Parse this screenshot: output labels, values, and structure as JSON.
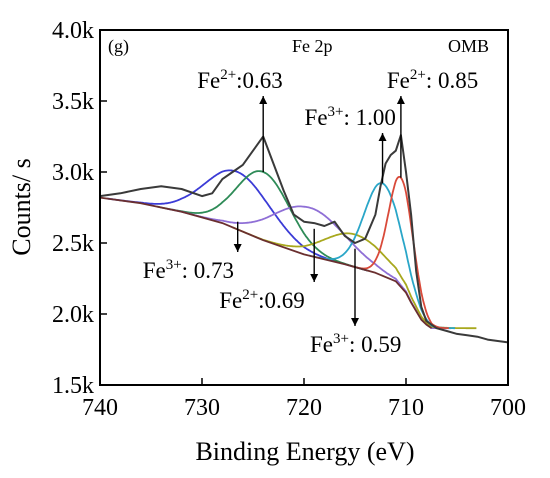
{
  "chart_data": {
    "type": "line",
    "panel_label": "(g)",
    "title": "Fe 2p",
    "corner_label": "OMB",
    "xlabel": "Binding Energy (eV)",
    "ylabel": "Counts/ s",
    "xlim": [
      740,
      700
    ],
    "ylim": [
      1500,
      4000
    ],
    "x_ticks": [
      740,
      730,
      720,
      710,
      700
    ],
    "y_ticks": [
      {
        "value": 1500,
        "label": "1.5k"
      },
      {
        "value": 2000,
        "label": "2.0k"
      },
      {
        "value": 2500,
        "label": "2.5k"
      },
      {
        "value": 3000,
        "label": "3.0k"
      },
      {
        "value": 3500,
        "label": "3.5k"
      },
      {
        "value": 4000,
        "label": "4.0k"
      }
    ],
    "grid": false,
    "series": [
      {
        "kind": "raw",
        "color": "#3a3a3a",
        "x": [
          740,
          738,
          736,
          734,
          732,
          730,
          729,
          728,
          727,
          726,
          725,
          724.5,
          724,
          723,
          722,
          721,
          720,
          719,
          718,
          717,
          716,
          715,
          714,
          713,
          712.5,
          712,
          711.5,
          711,
          710.5,
          710,
          709.5,
          709,
          708.5,
          708,
          707,
          706,
          705,
          704,
          703,
          702,
          701,
          700
        ],
        "y": [
          2830,
          2850,
          2880,
          2900,
          2880,
          2830,
          2850,
          2950,
          3000,
          3050,
          3150,
          3200,
          3250,
          3060,
          2870,
          2700,
          2650,
          2640,
          2620,
          2650,
          2550,
          2500,
          2530,
          2700,
          2900,
          3060,
          3120,
          3150,
          3260,
          3000,
          2700,
          2300,
          2050,
          1950,
          1900,
          1880,
          1860,
          1850,
          1840,
          1820,
          1810,
          1800
        ]
      },
      {
        "kind": "background",
        "color": "#6a2f2f",
        "x": [
          740,
          736,
          732,
          728,
          724,
          720,
          716,
          713,
          711,
          710,
          709.5,
          709,
          708.5,
          708,
          707.5
        ],
        "y": [
          2820,
          2780,
          2720,
          2640,
          2520,
          2420,
          2350,
          2290,
          2230,
          2150,
          2080,
          2020,
          1960,
          1925,
          1900
        ]
      },
      {
        "kind": "peak",
        "name": "Fe3+: 0.73",
        "color": "#3b3bd6",
        "center": 726.5,
        "height": 3000,
        "width": 3.2
      },
      {
        "kind": "peak",
        "name": "Fe2+:0.63",
        "color": "#2e8b57",
        "center": 724.0,
        "height": 3000,
        "width": 2.6
      },
      {
        "kind": "peak",
        "name": "Fe2+:0.69",
        "color": "#8f6fd6",
        "center": 719.5,
        "height": 2750,
        "width": 3.5
      },
      {
        "kind": "peak",
        "name": "Fe3+: 0.59",
        "color": "#a8a81e",
        "center": 715.0,
        "height": 2560,
        "width": 3.0
      },
      {
        "kind": "peak",
        "name": "Fe3+: 1.00",
        "color": "#2aa6c8",
        "center": 712.3,
        "height": 2920,
        "width": 1.8
      },
      {
        "kind": "peak",
        "name": "Fe2+: 0.85",
        "color": "#d94a3a",
        "center": 710.5,
        "height": 2960,
        "width": 1.2
      }
    ],
    "annotations": [
      {
        "ion": "Fe",
        "charge": "2+",
        "value": ":0.63",
        "x": 724.0,
        "y": 3000,
        "arrow": "up"
      },
      {
        "ion": "Fe",
        "charge": "3+",
        "value": ": 1.00",
        "x": 712.3,
        "y": 2920,
        "arrow": "up"
      },
      {
        "ion": "Fe",
        "charge": "2+",
        "value": ": 0.85",
        "x": 710.5,
        "y": 2960,
        "arrow": "up"
      },
      {
        "ion": "Fe",
        "charge": "3+",
        "value": ": 0.73",
        "x": 726.5,
        "y": 2650,
        "arrow": "down"
      },
      {
        "ion": "Fe",
        "charge": "2+",
        "value": ":0.69",
        "x": 719.0,
        "y": 2600,
        "arrow": "down"
      },
      {
        "ion": "Fe",
        "charge": "3+",
        "value": ": 0.59",
        "x": 715.0,
        "y": 2460,
        "arrow": "down"
      }
    ]
  }
}
